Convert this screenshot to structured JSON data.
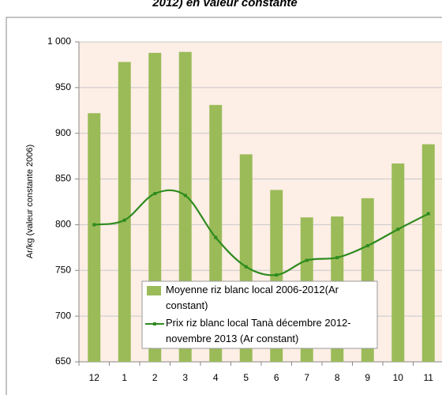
{
  "chart_data": {
    "type": "bar_line",
    "title": "2012) en valeur constante",
    "y_label": "Ar/kg (valeur constante 2006)",
    "categories": [
      "12",
      "1",
      "2",
      "3",
      "4",
      "5",
      "6",
      "7",
      "8",
      "9",
      "10",
      "11"
    ],
    "series": [
      {
        "name": "Moyenne riz blanc local 2006-2012(Ar constant)",
        "type": "bar",
        "color": "#9bbb59",
        "values": [
          922,
          978,
          988,
          989,
          931,
          877,
          838,
          808,
          809,
          829,
          867,
          888
        ]
      },
      {
        "name": "Prix riz blanc local Tanà décembre 2012- novembre 2013 (Ar constant)",
        "type": "line",
        "color": "#2e8b1e",
        "values": [
          800,
          805,
          834,
          832,
          786,
          754,
          745,
          761,
          764,
          777,
          795,
          812
        ]
      }
    ],
    "ylim": [
      650,
      1000
    ],
    "yticks": [
      650,
      700,
      750,
      800,
      850,
      900,
      950,
      {
        "value": 1000,
        "label": "1 000"
      }
    ],
    "grid": true
  }
}
